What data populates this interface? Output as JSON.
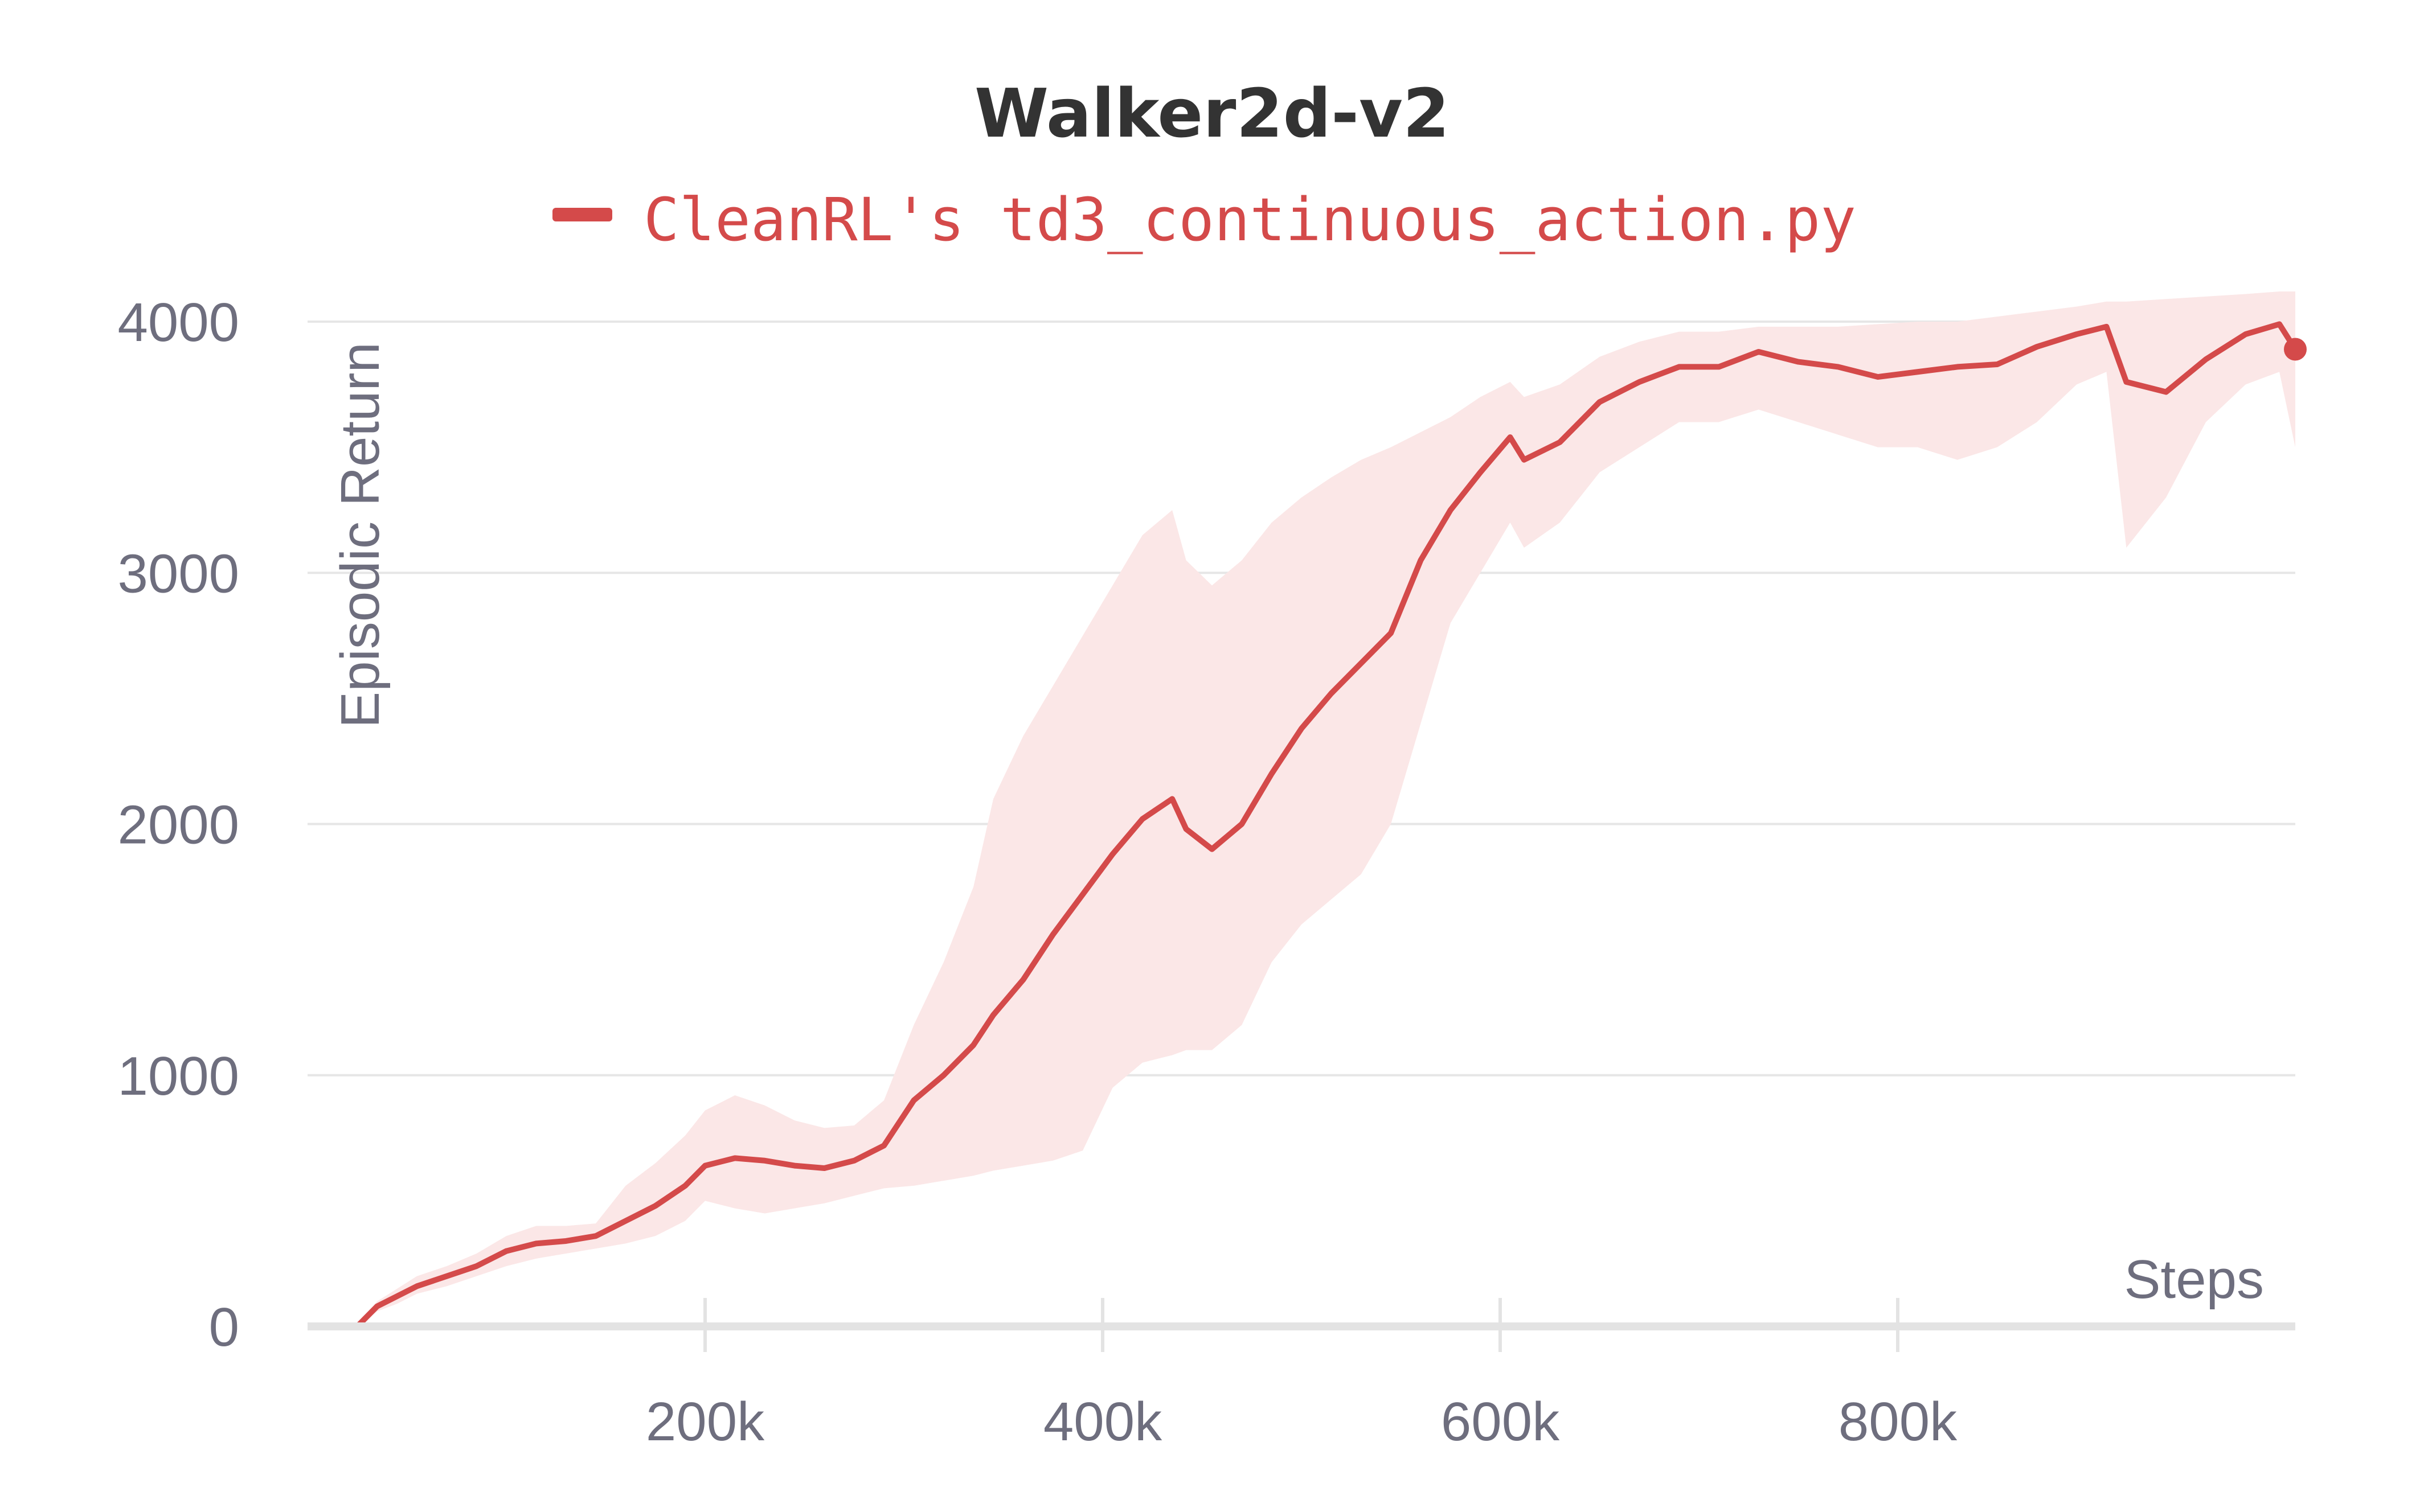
{
  "chart_data": {
    "type": "line",
    "title": "Walker2d-v2",
    "xlabel": "Steps",
    "ylabel": "Episodic Return",
    "xlim": [
      0,
      1000000
    ],
    "ylim": [
      0,
      4000
    ],
    "x_ticks": [
      200000,
      400000,
      600000,
      800000
    ],
    "x_tick_labels": [
      "200k",
      "400k",
      "600k",
      "800k"
    ],
    "y_ticks": [
      0,
      1000,
      2000,
      3000,
      4000
    ],
    "y_tick_labels": [
      "0",
      "1000",
      "2000",
      "3000",
      "4000"
    ],
    "grid": true,
    "legend_position": "top-center",
    "series": [
      {
        "name": "CleanRL's td3_continuous_action.py",
        "color": "#d44a4a",
        "band_color": "#fbe7e7",
        "points": [
          [
            25000,
            0,
            0,
            0
          ],
          [
            35000,
            80,
            60,
            100
          ],
          [
            45000,
            120,
            90,
            150
          ],
          [
            55000,
            160,
            130,
            200
          ],
          [
            70000,
            200,
            160,
            240
          ],
          [
            85000,
            240,
            200,
            290
          ],
          [
            100000,
            300,
            240,
            360
          ],
          [
            115000,
            330,
            270,
            400
          ],
          [
            130000,
            340,
            290,
            400
          ],
          [
            145000,
            360,
            310,
            410
          ],
          [
            160000,
            420,
            330,
            560
          ],
          [
            175000,
            480,
            360,
            650
          ],
          [
            190000,
            560,
            420,
            760
          ],
          [
            200000,
            640,
            500,
            860
          ],
          [
            215000,
            670,
            470,
            920
          ],
          [
            230000,
            660,
            450,
            880
          ],
          [
            245000,
            640,
            470,
            820
          ],
          [
            260000,
            630,
            490,
            790
          ],
          [
            275000,
            660,
            520,
            800
          ],
          [
            290000,
            720,
            550,
            900
          ],
          [
            305000,
            900,
            560,
            1200
          ],
          [
            320000,
            1000,
            580,
            1450
          ],
          [
            335000,
            1120,
            600,
            1750
          ],
          [
            345000,
            1240,
            620,
            2100
          ],
          [
            360000,
            1380,
            640,
            2350
          ],
          [
            375000,
            1560,
            660,
            2550
          ],
          [
            390000,
            1720,
            700,
            2750
          ],
          [
            405000,
            1880,
            950,
            2950
          ],
          [
            420000,
            2020,
            1050,
            3150
          ],
          [
            435000,
            2100,
            1080,
            3250
          ],
          [
            442000,
            1980,
            1100,
            3050
          ],
          [
            455000,
            1900,
            1100,
            2950
          ],
          [
            470000,
            2000,
            1200,
            3050
          ],
          [
            485000,
            2200,
            1450,
            3200
          ],
          [
            500000,
            2380,
            1600,
            3300
          ],
          [
            515000,
            2520,
            1700,
            3380
          ],
          [
            530000,
            2640,
            1800,
            3450
          ],
          [
            545000,
            2760,
            2000,
            3500
          ],
          [
            560000,
            3050,
            2400,
            3560
          ],
          [
            575000,
            3250,
            2800,
            3620
          ],
          [
            590000,
            3400,
            3000,
            3700
          ],
          [
            605000,
            3540,
            3200,
            3760
          ],
          [
            612000,
            3450,
            3100,
            3700
          ],
          [
            630000,
            3520,
            3200,
            3750
          ],
          [
            650000,
            3680,
            3400,
            3860
          ],
          [
            670000,
            3760,
            3500,
            3920
          ],
          [
            690000,
            3820,
            3600,
            3960
          ],
          [
            710000,
            3820,
            3600,
            3960
          ],
          [
            730000,
            3880,
            3650,
            3980
          ],
          [
            750000,
            3840,
            3600,
            3980
          ],
          [
            770000,
            3820,
            3550,
            3980
          ],
          [
            790000,
            3780,
            3500,
            3990
          ],
          [
            810000,
            3800,
            3500,
            4000
          ],
          [
            830000,
            3820,
            3450,
            4000
          ],
          [
            850000,
            3830,
            3500,
            4020
          ],
          [
            870000,
            3900,
            3600,
            4040
          ],
          [
            890000,
            3950,
            3750,
            4060
          ],
          [
            905000,
            3980,
            3800,
            4080
          ],
          [
            915000,
            3760,
            3100,
            4080
          ],
          [
            935000,
            3720,
            3300,
            4090
          ],
          [
            955000,
            3850,
            3600,
            4100
          ],
          [
            975000,
            3950,
            3750,
            4110
          ],
          [
            992000,
            3990,
            3800,
            4120
          ],
          [
            1000000,
            3890,
            3500,
            4120
          ]
        ]
      }
    ]
  }
}
